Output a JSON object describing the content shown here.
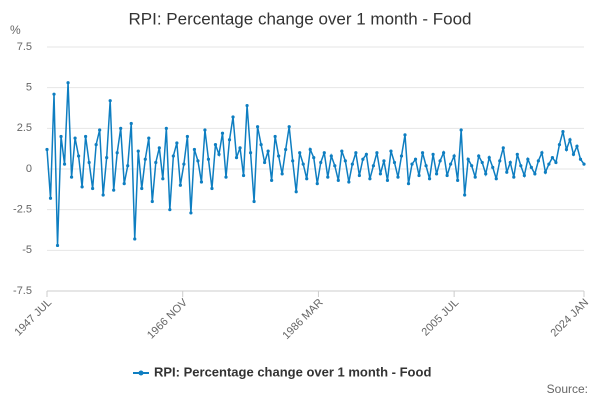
{
  "chart_data": {
    "type": "line",
    "title": "RPI: Percentage change over 1 month - Food",
    "y_label": "%",
    "source": "Source:",
    "xlim": [
      0,
      918
    ],
    "xticks": [
      {
        "value": 0,
        "label": "1947 JUL"
      },
      {
        "value": 232,
        "label": "1966 NOV"
      },
      {
        "value": 464,
        "label": "1986 MAR"
      },
      {
        "value": 696,
        "label": "2005 JUL"
      },
      {
        "value": 918,
        "label": "2024 JAN"
      }
    ],
    "ylim": [
      -7.5,
      7.5
    ],
    "yticks": [
      -7.5,
      -5,
      -2.5,
      0,
      2.5,
      5,
      7.5
    ],
    "grid": true,
    "series": [
      {
        "name": "RPI: Percentage change over 1 month - Food",
        "color": "#0e7ec1",
        "x": [
          0,
          6,
          12,
          18,
          24,
          30,
          36,
          42,
          48,
          54,
          60,
          66,
          72,
          78,
          84,
          90,
          96,
          102,
          108,
          114,
          120,
          126,
          132,
          138,
          144,
          150,
          156,
          162,
          168,
          174,
          180,
          186,
          192,
          198,
          204,
          210,
          216,
          222,
          228,
          234,
          240,
          246,
          252,
          258,
          264,
          270,
          276,
          282,
          288,
          294,
          300,
          306,
          312,
          318,
          324,
          330,
          336,
          342,
          348,
          354,
          360,
          366,
          372,
          378,
          384,
          390,
          396,
          402,
          408,
          414,
          420,
          426,
          432,
          438,
          444,
          450,
          456,
          462,
          468,
          474,
          480,
          486,
          492,
          498,
          504,
          510,
          516,
          522,
          528,
          534,
          540,
          546,
          552,
          558,
          564,
          570,
          576,
          582,
          588,
          594,
          600,
          606,
          612,
          618,
          624,
          630,
          636,
          642,
          648,
          654,
          660,
          666,
          672,
          678,
          684,
          690,
          696,
          702,
          708,
          714,
          720,
          726,
          732,
          738,
          744,
          750,
          756,
          762,
          768,
          774,
          780,
          786,
          792,
          798,
          804,
          810,
          816,
          822,
          828,
          834,
          840,
          846,
          852,
          858,
          864,
          870,
          876,
          882,
          888,
          894,
          900,
          906,
          912,
          918
        ],
        "values": [
          1.2,
          -1.8,
          4.6,
          -4.7,
          2.0,
          0.3,
          5.3,
          -0.5,
          1.9,
          0.8,
          -1.1,
          2.0,
          0.4,
          -1.2,
          1.5,
          2.4,
          -1.6,
          0.7,
          4.2,
          -1.3,
          1.0,
          2.5,
          -0.9,
          0.2,
          2.8,
          -4.3,
          1.1,
          -1.2,
          0.6,
          1.9,
          -2.0,
          0.4,
          1.3,
          -0.6,
          2.5,
          -2.5,
          0.8,
          1.6,
          -1.0,
          0.3,
          2.0,
          -2.7,
          1.2,
          0.5,
          -0.8,
          2.4,
          0.6,
          -1.2,
          1.5,
          0.9,
          2.2,
          -0.5,
          1.8,
          3.2,
          0.7,
          1.3,
          -0.4,
          3.9,
          1.0,
          -2.0,
          2.6,
          1.5,
          0.4,
          1.1,
          -0.7,
          2.0,
          0.8,
          -0.3,
          1.2,
          2.6,
          0.5,
          -1.4,
          1.0,
          0.3,
          -0.6,
          1.2,
          0.7,
          -0.9,
          0.4,
          1.0,
          -0.5,
          0.8,
          0.2,
          -0.7,
          1.1,
          0.5,
          -0.8,
          0.3,
          1.0,
          -0.4,
          0.6,
          0.9,
          -0.6,
          0.2,
          1.0,
          -0.3,
          0.5,
          -0.7,
          1.1,
          0.4,
          -0.5,
          0.8,
          2.1,
          -0.9,
          0.3,
          0.6,
          -0.4,
          1.0,
          0.2,
          -0.6,
          0.9,
          -0.3,
          0.5,
          1.0,
          -0.4,
          0.3,
          0.8,
          -0.7,
          2.4,
          -1.6,
          0.6,
          0.2,
          -0.5,
          0.8,
          0.4,
          -0.3,
          0.7,
          0.1,
          -0.6,
          0.5,
          1.3,
          -0.2,
          0.4,
          -0.5,
          0.9,
          0.2,
          -0.4,
          0.6,
          0.1,
          -0.3,
          0.5,
          1.0,
          -0.2,
          0.3,
          0.7,
          0.4,
          1.5,
          2.3,
          1.2,
          1.8,
          0.9,
          1.4,
          0.6,
          0.3
        ]
      }
    ]
  }
}
